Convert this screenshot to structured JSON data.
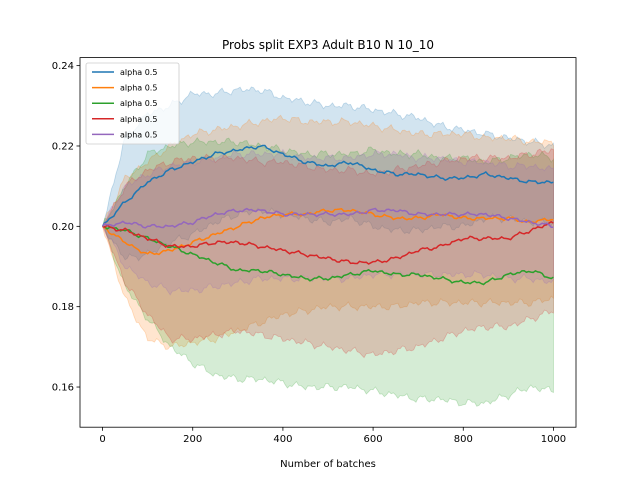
{
  "chart_data": {
    "type": "line",
    "title": "Probs split EXP3 Adult B10 N 10_10",
    "xlabel": "Number of batches",
    "ylabel": "",
    "xlim": [
      -50,
      1050
    ],
    "ylim": [
      0.15,
      0.242
    ],
    "xticks": [
      0,
      200,
      400,
      600,
      800,
      1000
    ],
    "xtick_labels": [
      "0",
      "200",
      "400",
      "600",
      "800",
      "1000"
    ],
    "yticks": [
      0.16,
      0.18,
      0.2,
      0.22,
      0.24
    ],
    "ytick_labels": [
      "0.16",
      "0.18",
      "0.20",
      "0.22",
      "0.24"
    ],
    "grid": false,
    "legend_position": "top-left",
    "x": [
      0,
      50,
      100,
      150,
      200,
      250,
      300,
      350,
      400,
      450,
      500,
      550,
      600,
      650,
      700,
      750,
      800,
      850,
      900,
      950,
      1000
    ],
    "series": [
      {
        "name": "alpha 0.5",
        "color": "#1f77b4",
        "values": [
          0.2,
          0.206,
          0.211,
          0.214,
          0.216,
          0.218,
          0.219,
          0.22,
          0.218,
          0.216,
          0.215,
          0.216,
          0.214,
          0.213,
          0.213,
          0.212,
          0.212,
          0.213,
          0.212,
          0.211,
          0.211
        ],
        "upper": [
          0.2,
          0.222,
          0.228,
          0.23,
          0.233,
          0.233,
          0.234,
          0.234,
          0.232,
          0.231,
          0.23,
          0.23,
          0.229,
          0.228,
          0.227,
          0.225,
          0.224,
          0.223,
          0.222,
          0.221,
          0.22
        ],
        "lower": [
          0.2,
          0.192,
          0.193,
          0.196,
          0.198,
          0.201,
          0.203,
          0.204,
          0.203,
          0.202,
          0.201,
          0.202,
          0.2,
          0.199,
          0.199,
          0.2,
          0.2,
          0.202,
          0.202,
          0.201,
          0.201
        ]
      },
      {
        "name": "alpha 0.5",
        "color": "#ff7f0e",
        "values": [
          0.2,
          0.196,
          0.193,
          0.194,
          0.196,
          0.198,
          0.2,
          0.202,
          0.203,
          0.203,
          0.204,
          0.204,
          0.203,
          0.202,
          0.202,
          0.203,
          0.202,
          0.202,
          0.202,
          0.201,
          0.202
        ],
        "upper": [
          0.2,
          0.212,
          0.216,
          0.22,
          0.223,
          0.224,
          0.225,
          0.226,
          0.227,
          0.226,
          0.226,
          0.226,
          0.225,
          0.224,
          0.223,
          0.223,
          0.223,
          0.222,
          0.222,
          0.221,
          0.221
        ],
        "lower": [
          0.2,
          0.182,
          0.172,
          0.17,
          0.171,
          0.172,
          0.174,
          0.176,
          0.178,
          0.179,
          0.18,
          0.18,
          0.18,
          0.18,
          0.181,
          0.181,
          0.181,
          0.181,
          0.181,
          0.181,
          0.182
        ]
      },
      {
        "name": "alpha 0.5",
        "color": "#2ca02c",
        "values": [
          0.2,
          0.199,
          0.197,
          0.195,
          0.193,
          0.191,
          0.189,
          0.189,
          0.188,
          0.187,
          0.187,
          0.188,
          0.189,
          0.188,
          0.188,
          0.187,
          0.186,
          0.186,
          0.188,
          0.189,
          0.187
        ],
        "upper": [
          0.2,
          0.21,
          0.218,
          0.22,
          0.221,
          0.221,
          0.221,
          0.22,
          0.219,
          0.218,
          0.218,
          0.218,
          0.219,
          0.218,
          0.218,
          0.217,
          0.217,
          0.216,
          0.217,
          0.218,
          0.217
        ],
        "lower": [
          0.2,
          0.185,
          0.177,
          0.17,
          0.166,
          0.163,
          0.162,
          0.162,
          0.161,
          0.16,
          0.16,
          0.16,
          0.159,
          0.158,
          0.157,
          0.157,
          0.156,
          0.156,
          0.158,
          0.16,
          0.159
        ]
      },
      {
        "name": "alpha 0.5",
        "color": "#d62728",
        "values": [
          0.2,
          0.199,
          0.197,
          0.195,
          0.195,
          0.196,
          0.196,
          0.195,
          0.194,
          0.193,
          0.192,
          0.191,
          0.191,
          0.192,
          0.194,
          0.195,
          0.197,
          0.197,
          0.197,
          0.199,
          0.201
        ],
        "upper": [
          0.2,
          0.21,
          0.214,
          0.216,
          0.217,
          0.217,
          0.217,
          0.216,
          0.216,
          0.215,
          0.214,
          0.214,
          0.213,
          0.214,
          0.215,
          0.216,
          0.217,
          0.217,
          0.217,
          0.218,
          0.219
        ],
        "lower": [
          0.2,
          0.186,
          0.178,
          0.172,
          0.172,
          0.173,
          0.174,
          0.173,
          0.172,
          0.171,
          0.17,
          0.169,
          0.168,
          0.169,
          0.17,
          0.172,
          0.174,
          0.175,
          0.175,
          0.177,
          0.179
        ]
      },
      {
        "name": "alpha 0.5",
        "color": "#9467bd",
        "values": [
          0.2,
          0.201,
          0.2,
          0.2,
          0.201,
          0.203,
          0.204,
          0.204,
          0.203,
          0.203,
          0.203,
          0.203,
          0.204,
          0.204,
          0.203,
          0.203,
          0.203,
          0.203,
          0.202,
          0.201,
          0.2
        ],
        "upper": [
          0.2,
          0.21,
          0.213,
          0.215,
          0.216,
          0.217,
          0.218,
          0.218,
          0.218,
          0.217,
          0.217,
          0.217,
          0.218,
          0.218,
          0.217,
          0.217,
          0.216,
          0.216,
          0.215,
          0.215,
          0.214
        ],
        "lower": [
          0.2,
          0.19,
          0.186,
          0.184,
          0.184,
          0.185,
          0.186,
          0.187,
          0.187,
          0.187,
          0.187,
          0.187,
          0.188,
          0.188,
          0.188,
          0.188,
          0.188,
          0.188,
          0.187,
          0.187,
          0.186
        ]
      }
    ]
  }
}
